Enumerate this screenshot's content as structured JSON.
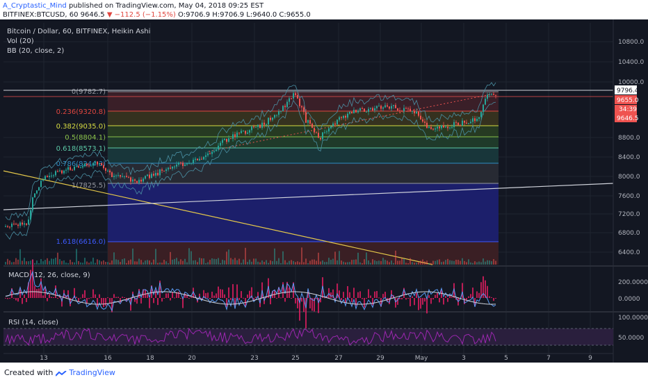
{
  "header": {
    "author": "A_Cryptastic_Mind",
    "published_text": "published on TradingView.com, May 04, 2018 09:25 EST",
    "symbol_line_a": "BITFINEX:BTCUSD, 60  9646.5 ",
    "change": "▼ −112.5 (−1.15%)",
    "ohlc": " O:9706.9 H:9706.9 L:9640.0 C:9655.0"
  },
  "chart": {
    "title": "Bitcoin / Dollar, 60, BITFINEX, Heikin Ashi",
    "vol_label": "Vol (20)",
    "bb_label": "BB (20, close, 2)",
    "price_ticks": [
      "10800.0",
      "10400.0",
      "10000.0",
      "8800.0",
      "8400.0",
      "8000.0",
      "7600.0",
      "7200.0",
      "6800.0",
      "6400.0"
    ],
    "price_badges": [
      "9796.4",
      "9655.0",
      "34:39",
      "9646.5"
    ],
    "fib_levels": [
      {
        "label": "0(9782.7)",
        "color": "#9598a1",
        "fill": "#3a1f28"
      },
      {
        "label": "0.236(9320.8)",
        "color": "#e0463f",
        "fill": "#3a1f24"
      },
      {
        "label": "0.382(9035.0)",
        "color": "#d7dc42",
        "fill": "#2b3a22"
      },
      {
        "label": "0.5(8804.1)",
        "color": "#8bc34a",
        "fill": "#1f3a2a"
      },
      {
        "label": "0.618(8573.1)",
        "color": "#5cc8a6",
        "fill": "#18363a"
      },
      {
        "label": "0.786(8244.3)",
        "color": "#2e8cc4",
        "fill": "#272a33"
      },
      {
        "label": "1(7825.5)",
        "color": "#9598a1",
        "fill": "#1c1f6b"
      },
      {
        "label": "1.618(6616.0)",
        "color": "#3d5afe",
        "fill": "#3a1f24"
      }
    ],
    "macd_label": "MACD (12, 26, close, 9)",
    "macd_ticks": [
      "200.0000",
      "0.0000"
    ],
    "rsi_label": "RSI (14, close)",
    "rsi_ticks": [
      "100.0000",
      "50.0000"
    ],
    "time_ticks": [
      "13",
      "16",
      "18",
      "20",
      "23",
      "25",
      "27",
      "29",
      "May",
      "3",
      "5",
      "7",
      "9"
    ]
  },
  "footer": {
    "created_with": "Created with",
    "brand": "TradingView"
  },
  "colors": {
    "bg": "#131722",
    "up": "#26a69a",
    "down": "#ef5350",
    "grid": "#1f2430"
  }
}
